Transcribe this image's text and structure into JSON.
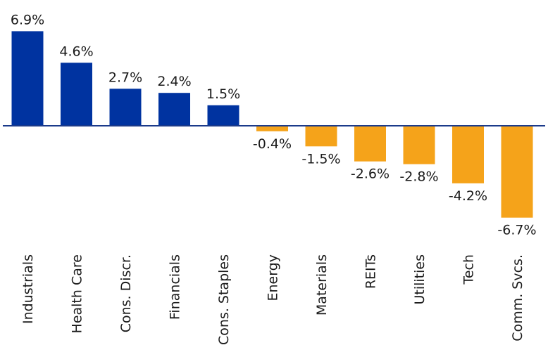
{
  "chart_data": {
    "type": "bar",
    "categories": [
      "Industrials",
      "Health Care",
      "Cons. Discr.",
      "Financials",
      "Cons. Staples",
      "Energy",
      "Materials",
      "REITs",
      "Utilities",
      "Tech",
      "Comm. Svcs."
    ],
    "values": [
      6.9,
      4.6,
      2.7,
      2.4,
      1.5,
      -0.4,
      -1.5,
      -2.6,
      -2.8,
      -4.2,
      -6.7
    ],
    "data_labels": [
      "6.9%",
      "4.6%",
      "2.7%",
      "2.4%",
      "1.5%",
      "-0.4%",
      "-1.5%",
      "-2.6%",
      "-2.8%",
      "-4.2%",
      "-6.7%"
    ],
    "title": "",
    "xlabel": "",
    "ylabel": "",
    "colors": {
      "positive": "#0033a0",
      "negative": "#f5a31a",
      "baseline": "#1b3a8a"
    },
    "grid": false,
    "legend": "none"
  }
}
